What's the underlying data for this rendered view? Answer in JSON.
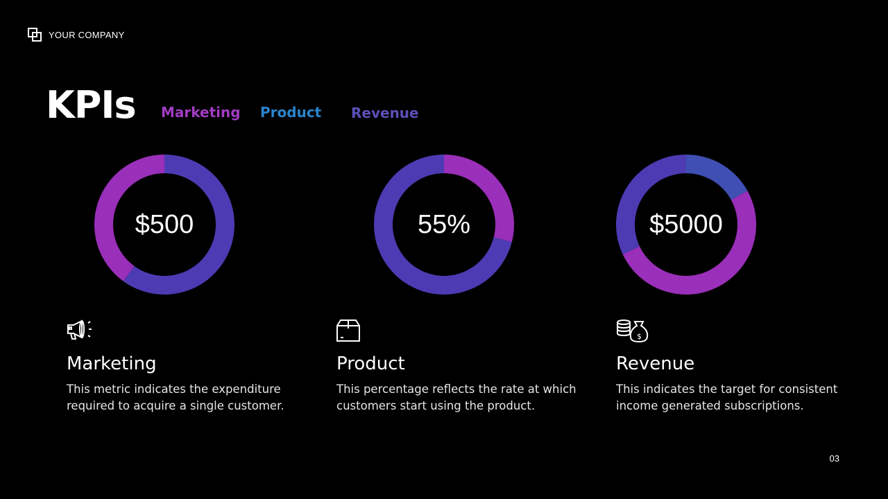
{
  "brand": {
    "name": "YOUR COMPANY",
    "icon": "overlapping-squares-icon"
  },
  "title": "KPIs",
  "legend": [
    {
      "label": "Marketing",
      "color": "#a23cc4"
    },
    {
      "label": "Product",
      "color": "#2b84cc"
    },
    {
      "label": "Revenue",
      "color": "#5b50b8"
    }
  ],
  "chart_data": [
    {
      "type": "pie",
      "variant": "donut",
      "center_label": "$500",
      "segments": [
        {
          "value": 60,
          "color": "#4c3bb3"
        },
        {
          "value": 40,
          "color": "#9a2fb9"
        }
      ]
    },
    {
      "type": "pie",
      "variant": "donut",
      "center_label": "55%",
      "segments": [
        {
          "value": 29,
          "color": "#9a2fb9"
        },
        {
          "value": 71,
          "color": "#4c3bb3"
        }
      ]
    },
    {
      "type": "pie",
      "variant": "donut",
      "center_label": "$5000",
      "segments": [
        {
          "value": 17,
          "color": "#3f4fb3"
        },
        {
          "value": 51,
          "color": "#9a2fb9"
        },
        {
          "value": 32,
          "color": "#4c3bb3"
        }
      ]
    }
  ],
  "cards": [
    {
      "icon": "megaphone-icon",
      "title": "Marketing",
      "text": "This metric indicates the expenditure required to acquire a single customer."
    },
    {
      "icon": "box-icon",
      "title": "Product",
      "text": "This percentage reflects the rate at which customers start using the product."
    },
    {
      "icon": "money-bag-coins-icon",
      "title": "Revenue",
      "text": "This indicates the target for consistent income generated subscriptions."
    }
  ],
  "page_number": "03"
}
